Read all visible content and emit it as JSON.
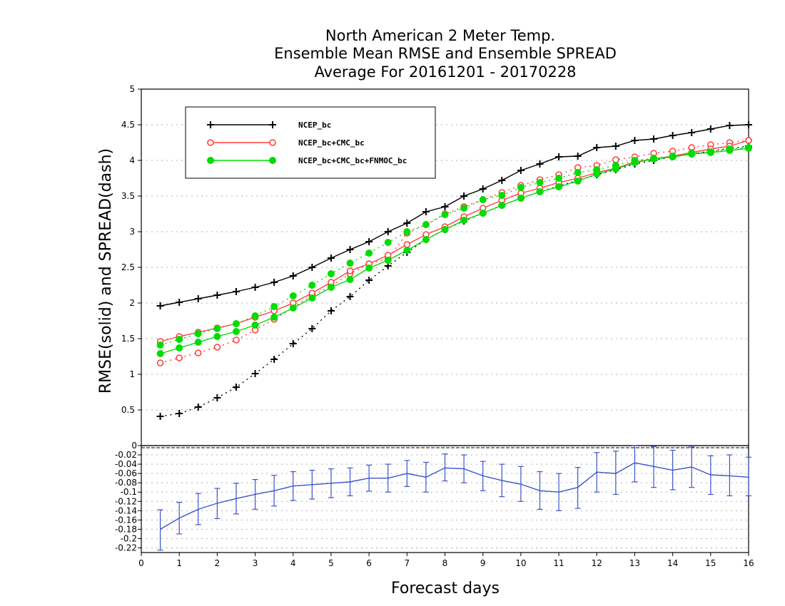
{
  "chart_data": {
    "type": "line",
    "title": [
      "North American 2 Meter Temp.",
      "Ensemble Mean RMSE and Ensemble SPREAD",
      "Average For 20161201 - 20170228"
    ],
    "xlabel": "Forecast days",
    "ylabel": "RMSE(solid) and SPREAD(dash)",
    "x": [
      0.5,
      1,
      1.5,
      2,
      2.5,
      3,
      3.5,
      4,
      4.5,
      5,
      5.5,
      6,
      6.5,
      7,
      7.5,
      8,
      8.5,
      9,
      9.5,
      10,
      10.5,
      11,
      11.5,
      12,
      12.5,
      13,
      13.5,
      14,
      14.5,
      15,
      15.5,
      16
    ],
    "xlim": [
      0,
      16
    ],
    "xticks": [
      "0",
      "1",
      "2",
      "3",
      "4",
      "5",
      "6",
      "7",
      "8",
      "9",
      "10",
      "11",
      "12",
      "13",
      "14",
      "15",
      "16"
    ],
    "top_panel": {
      "ylim": [
        0,
        5
      ],
      "yticks": [
        "0.5",
        "1",
        "1.5",
        "2",
        "2.5",
        "3",
        "3.5",
        "4",
        "4.5",
        "5"
      ],
      "grid": "horizontal dotted",
      "legend_position": "top-left",
      "series": [
        {
          "name": "NCEP_bc",
          "color": "#000000",
          "marker": "plus",
          "rmse": [
            1.96,
            2.01,
            2.06,
            2.11,
            2.16,
            2.22,
            2.29,
            2.38,
            2.5,
            2.63,
            2.75,
            2.86,
            3.0,
            3.12,
            3.28,
            3.35,
            3.5,
            3.6,
            3.72,
            3.86,
            3.95,
            4.05,
            4.06,
            4.18,
            4.2,
            4.28,
            4.3,
            4.35,
            4.39,
            4.44,
            4.49,
            4.5
          ],
          "spread": [
            0.41,
            0.45,
            0.54,
            0.67,
            0.82,
            1.01,
            1.21,
            1.43,
            1.64,
            1.89,
            2.09,
            2.32,
            2.52,
            2.71,
            2.89,
            3.03,
            3.15,
            3.26,
            3.37,
            3.47,
            3.56,
            3.64,
            3.72,
            3.8,
            3.87,
            3.95,
            4.0,
            4.05,
            4.09,
            4.13,
            4.17,
            4.2
          ]
        },
        {
          "name": "NCEP_bc+CMC_bc",
          "color": "#ff4040",
          "marker": "open-circle",
          "rmse": [
            1.46,
            1.53,
            1.59,
            1.65,
            1.71,
            1.8,
            1.89,
            2.0,
            2.14,
            2.29,
            2.45,
            2.55,
            2.67,
            2.82,
            2.96,
            3.07,
            3.21,
            3.33,
            3.44,
            3.54,
            3.61,
            3.69,
            3.75,
            3.83,
            3.89,
            3.98,
            4.02,
            4.06,
            4.11,
            4.16,
            4.2,
            4.28
          ],
          "spread": [
            1.16,
            1.23,
            1.3,
            1.38,
            1.48,
            1.62,
            1.77,
            1.94,
            2.1,
            2.24,
            2.41,
            2.55,
            2.62,
            2.98,
            3.1,
            3.25,
            3.35,
            3.45,
            3.55,
            3.65,
            3.73,
            3.8,
            3.9,
            3.93,
            4.01,
            4.05,
            4.1,
            4.13,
            4.18,
            4.22,
            4.25,
            4.28
          ]
        },
        {
          "name": "NCEP_bc+CMC_bc+FNMOC_bc",
          "color": "#00dd00",
          "marker": "filled-circle",
          "rmse": [
            1.29,
            1.37,
            1.45,
            1.53,
            1.6,
            1.69,
            1.8,
            1.93,
            2.07,
            2.22,
            2.33,
            2.49,
            2.6,
            2.74,
            2.89,
            3.03,
            3.16,
            3.26,
            3.37,
            3.47,
            3.56,
            3.63,
            3.71,
            3.81,
            3.88,
            3.97,
            4.02,
            4.05,
            4.09,
            4.11,
            4.14,
            4.17
          ],
          "spread": [
            1.41,
            1.49,
            1.57,
            1.64,
            1.71,
            1.82,
            1.95,
            2.1,
            2.25,
            2.41,
            2.56,
            2.7,
            2.85,
            3.0,
            3.1,
            3.24,
            3.33,
            3.45,
            3.51,
            3.62,
            3.69,
            3.75,
            3.83,
            3.87,
            3.93,
            4.0,
            4.03,
            4.06,
            4.1,
            4.12,
            4.16,
            4.18
          ]
        }
      ]
    },
    "bottom_panel": {
      "ylim": [
        -0.23,
        0
      ],
      "yticks": [
        "0",
        "-0.02",
        "-0.04",
        "-0.06",
        "-0.08",
        "-0.1",
        "-0.12",
        "-0.14",
        "-0.16",
        "-0.18",
        "-0.2",
        "-0.22"
      ],
      "grid": "horizontal dotted",
      "series": [
        {
          "color": "#3a55cc",
          "type": "line-with-errorbars",
          "values": [
            -0.18,
            -0.156,
            -0.137,
            -0.124,
            -0.114,
            -0.105,
            -0.097,
            -0.087,
            -0.084,
            -0.081,
            -0.078,
            -0.07,
            -0.07,
            -0.06,
            -0.068,
            -0.048,
            -0.05,
            -0.065,
            -0.075,
            -0.083,
            -0.097,
            -0.1,
            -0.09,
            -0.057,
            -0.06,
            -0.037,
            -0.045,
            -0.053,
            -0.046,
            -0.063,
            -0.065,
            -0.068
          ],
          "lower": [
            -0.225,
            -0.19,
            -0.17,
            -0.157,
            -0.147,
            -0.137,
            -0.13,
            -0.118,
            -0.115,
            -0.112,
            -0.108,
            -0.098,
            -0.1,
            -0.088,
            -0.1,
            -0.076,
            -0.08,
            -0.097,
            -0.11,
            -0.12,
            -0.137,
            -0.14,
            -0.135,
            -0.1,
            -0.105,
            -0.078,
            -0.09,
            -0.095,
            -0.09,
            -0.105,
            -0.108,
            -0.108
          ],
          "upper": [
            -0.138,
            -0.122,
            -0.103,
            -0.092,
            -0.081,
            -0.073,
            -0.064,
            -0.056,
            -0.053,
            -0.05,
            -0.048,
            -0.042,
            -0.04,
            -0.032,
            -0.036,
            -0.018,
            -0.02,
            -0.034,
            -0.04,
            -0.045,
            -0.056,
            -0.06,
            -0.047,
            -0.015,
            -0.012,
            0.0,
            -0.002,
            -0.01,
            -0.003,
            -0.022,
            -0.02,
            -0.025
          ]
        }
      ]
    }
  }
}
